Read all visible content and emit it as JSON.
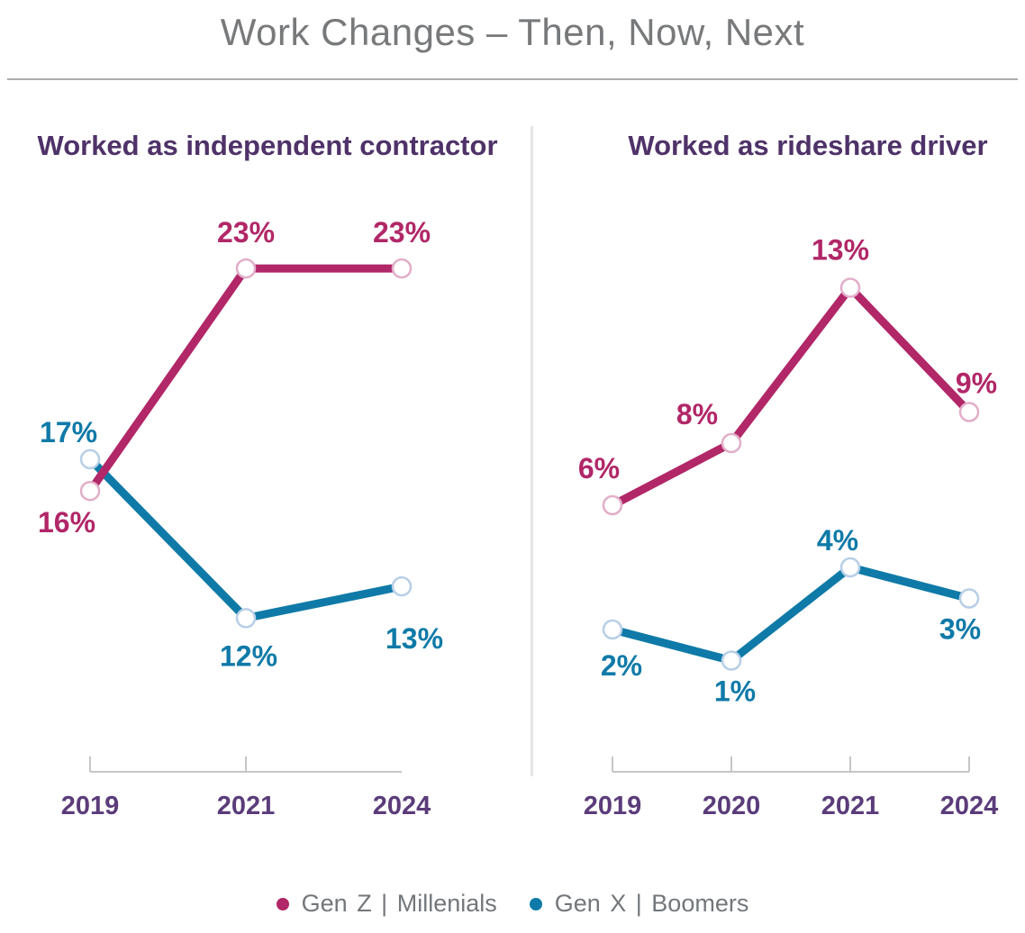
{
  "title": "Work Changes – Then, Now, Next",
  "colors": {
    "genz": "#b12768",
    "genx": "#0f7aa8",
    "ring_genz": "#e2aec9",
    "ring_genx": "#b7cfe6",
    "chart_title": "#4e3268",
    "tick_label": "#5b3c7a",
    "main_title": "#77797b",
    "legend_text": "#73777b",
    "axis": "#c4c6c8",
    "divider": "#e3e4e6"
  },
  "legend": [
    {
      "label": "Gen Z | Millenials",
      "series": "genz"
    },
    {
      "label": "Gen X | Boomers",
      "series": "genx"
    }
  ],
  "chart_data": [
    {
      "type": "line",
      "title": "Worked as independent contractor",
      "categories": [
        "2019",
        "2021",
        "2024"
      ],
      "series": [
        {
          "name": "Gen Z | Millenials",
          "color_key": "genz",
          "values": [
            16,
            23,
            23
          ],
          "labels": [
            "16%",
            "23%",
            "23%"
          ]
        },
        {
          "name": "Gen X | Boomers",
          "color_key": "genx",
          "values": [
            17,
            12,
            13
          ],
          "labels": [
            "17%",
            "12%",
            "13%"
          ]
        }
      ],
      "value_suffix": "%",
      "ylim": [
        0,
        26
      ],
      "grid": false,
      "legend_position": "bottom",
      "marker": "open-circle"
    },
    {
      "type": "line",
      "title": "Worked as rideshare driver",
      "categories": [
        "2019",
        "2020",
        "2021",
        "2024"
      ],
      "series": [
        {
          "name": "Gen Z | Millenials",
          "color_key": "genz",
          "values": [
            6,
            8,
            13,
            9
          ],
          "labels": [
            "6%",
            "8%",
            "13%",
            "9%"
          ]
        },
        {
          "name": "Gen X | Boomers",
          "color_key": "genx",
          "values": [
            2,
            1,
            4,
            3
          ],
          "labels": [
            "2%",
            "1%",
            "4%",
            "3%"
          ]
        }
      ],
      "value_suffix": "%",
      "ylim": [
        0,
        15
      ],
      "grid": false,
      "legend_position": "bottom",
      "marker": "open-circle"
    }
  ]
}
